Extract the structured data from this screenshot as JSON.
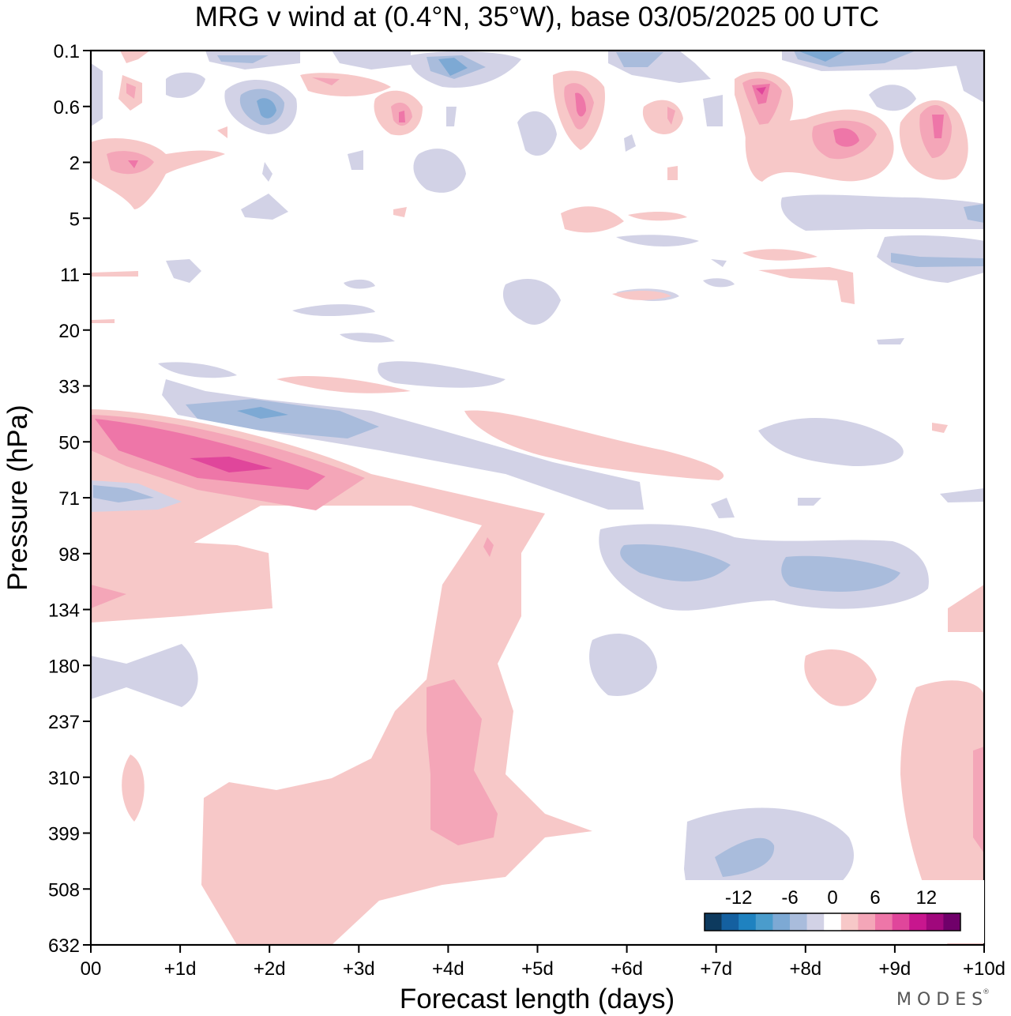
{
  "chart_data": {
    "type": "contour",
    "title": "MRG v wind at (0.4°N, 35°W),  base 03/05/2025  00 UTC",
    "xlabel": "Forecast length (days)",
    "ylabel": "Pressure (hPa)",
    "x_ticks": [
      "00",
      "+1d",
      "+2d",
      "+3d",
      "+4d",
      "+5d",
      "+6d",
      "+7d",
      "+8d",
      "+9d",
      "+10d"
    ],
    "xlim": [
      0,
      10
    ],
    "y_ticks": [
      0.1,
      0.6,
      2,
      5,
      11,
      20,
      33,
      50,
      71,
      98,
      134,
      180,
      237,
      310,
      399,
      508,
      632
    ],
    "y_tick_labels": [
      "0.1",
      "0.6",
      "2",
      "5",
      "11",
      "20",
      "33",
      "50",
      "71",
      "98",
      "134",
      "180",
      "237",
      "310",
      "399",
      "508",
      "632"
    ],
    "y_axis": "pressure levels, top to bottom",
    "colorbar": {
      "labels": [
        "-12",
        "-6",
        "0",
        "6",
        "12"
      ],
      "label_values": [
        -12,
        -6,
        0,
        6,
        12
      ],
      "levels": [
        -16,
        -14,
        -12,
        -10,
        -8,
        -6,
        -4,
        -2,
        2,
        4,
        6,
        8,
        10,
        12,
        14,
        16
      ],
      "colors": [
        "#0d3a5e",
        "#1460a0",
        "#1f82c0",
        "#4a9ccc",
        "#7da9d4",
        "#a9bcdc",
        "#d2d2e6",
        "#ffffff",
        "#f7c8c8",
        "#f4a6b8",
        "#ee76a8",
        "#e0469b",
        "#c8168e",
        "#a0087c",
        "#70006a"
      ]
    },
    "features": [
      {
        "sign": "positive",
        "level": 10,
        "x": 1.5,
        "p": 58,
        "note": "strongest positive core"
      },
      {
        "sign": "positive",
        "level": 6,
        "x": 4.0,
        "p": 310
      },
      {
        "sign": "positive",
        "level": 10,
        "x": 7.5,
        "p": 0.5
      },
      {
        "sign": "positive",
        "level": 8,
        "x": 9.5,
        "p": 1.0
      },
      {
        "sign": "positive",
        "level": 8,
        "x": 8.5,
        "p": 1.5
      },
      {
        "sign": "positive",
        "level": 6,
        "x": 5.5,
        "p": 0.6
      },
      {
        "sign": "negative",
        "level": -8,
        "x": 2.0,
        "p": 0.6
      },
      {
        "sign": "negative",
        "level": -8,
        "x": 4.0,
        "p": 0.15
      },
      {
        "sign": "negative",
        "level": -6,
        "x": 7.5,
        "p": 116
      },
      {
        "sign": "negative",
        "level": -6,
        "x": 8.4,
        "p": 116
      },
      {
        "sign": "negative",
        "level": -6,
        "x": 8.0,
        "p": 0.12
      },
      {
        "sign": "negative",
        "level": -6,
        "x": 0.1,
        "p": 70
      },
      {
        "sign": "negative",
        "level": -6,
        "x": 2.0,
        "p": 46
      },
      {
        "sign": "negative",
        "level": -6,
        "x": 7.6,
        "p": 460
      }
    ]
  },
  "branding": {
    "text": "MODES",
    "mark": "®"
  }
}
